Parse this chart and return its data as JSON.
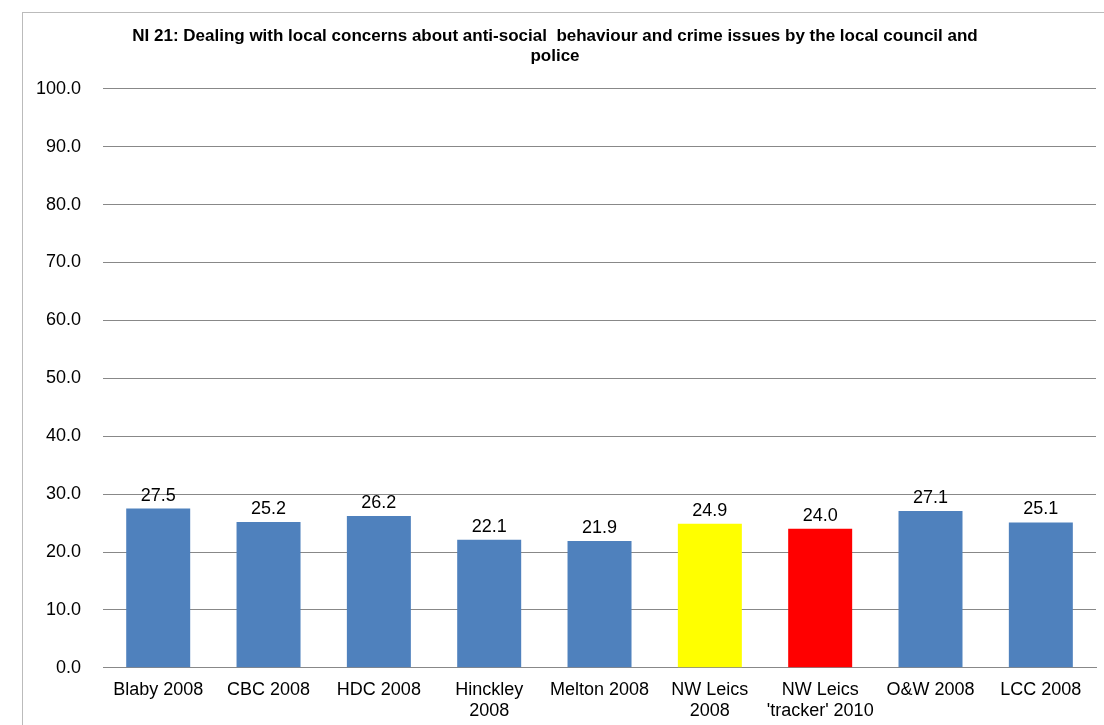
{
  "chart_data": {
    "type": "bar",
    "title": "NI 21: Dealing with local concerns about anti-social  behaviour and crime issues by the local council and police",
    "categories": [
      "Blaby 2008",
      "CBC 2008",
      "HDC 2008",
      "Hinckley 2008",
      "Melton 2008",
      "NW Leics 2008",
      "NW Leics 'tracker' 2010",
      "O&W 2008",
      "LCC 2008"
    ],
    "values": [
      27.5,
      25.2,
      26.2,
      22.1,
      21.9,
      24.9,
      24.0,
      27.1,
      25.1
    ],
    "colors": [
      "#4f81bd",
      "#4f81bd",
      "#4f81bd",
      "#4f81bd",
      "#4f81bd",
      "#ffff00",
      "#ff0000",
      "#4f81bd",
      "#4f81bd"
    ],
    "value_labels": [
      "27.5",
      "25.2",
      "26.2",
      "22.1",
      "21.9",
      "24.9",
      "24.0",
      "27.1",
      "25.1"
    ],
    "ylim": [
      0,
      100
    ],
    "yticks": [
      {
        "value": 0,
        "label": "0.0"
      },
      {
        "value": 10,
        "label": "10.0"
      },
      {
        "value": 20,
        "label": "20.0"
      },
      {
        "value": 30,
        "label": "30.0"
      },
      {
        "value": 40,
        "label": "40.0"
      },
      {
        "value": 50,
        "label": "50.0"
      },
      {
        "value": 60,
        "label": "60.0"
      },
      {
        "value": 70,
        "label": "70.0"
      },
      {
        "value": 80,
        "label": "80.0"
      },
      {
        "value": 90,
        "label": "90.0"
      },
      {
        "value": 100,
        "label": "100.0"
      }
    ],
    "grid": "y",
    "legend": false
  }
}
